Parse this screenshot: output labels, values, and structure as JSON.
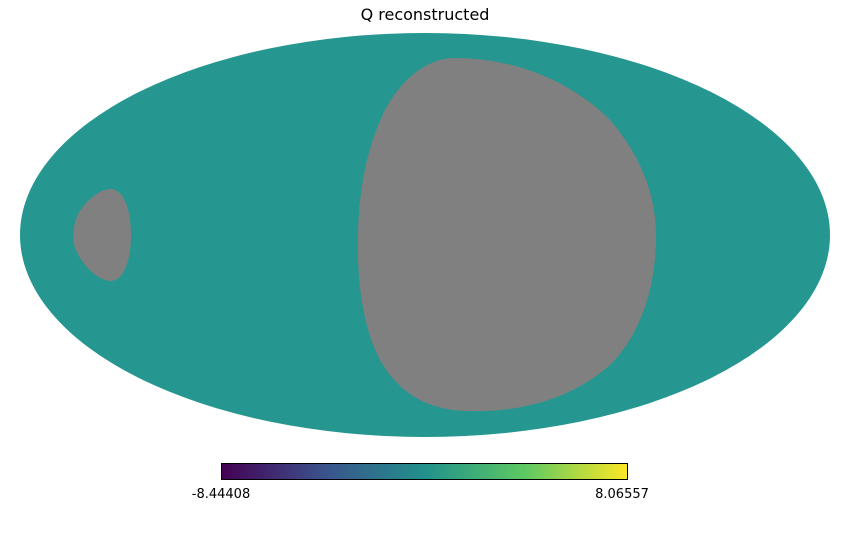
{
  "title": "Q reconstructed",
  "colormap": {
    "name": "viridis",
    "min_label": "-8.44408",
    "max_label": "8.06557",
    "stops": [
      "#440154",
      "#3b528b",
      "#21918c",
      "#5ec962",
      "#fde725"
    ]
  },
  "colors": {
    "map_fill": "#21938c",
    "masked": "#808080",
    "background": "#ffffff"
  },
  "projection": "mollweide"
}
